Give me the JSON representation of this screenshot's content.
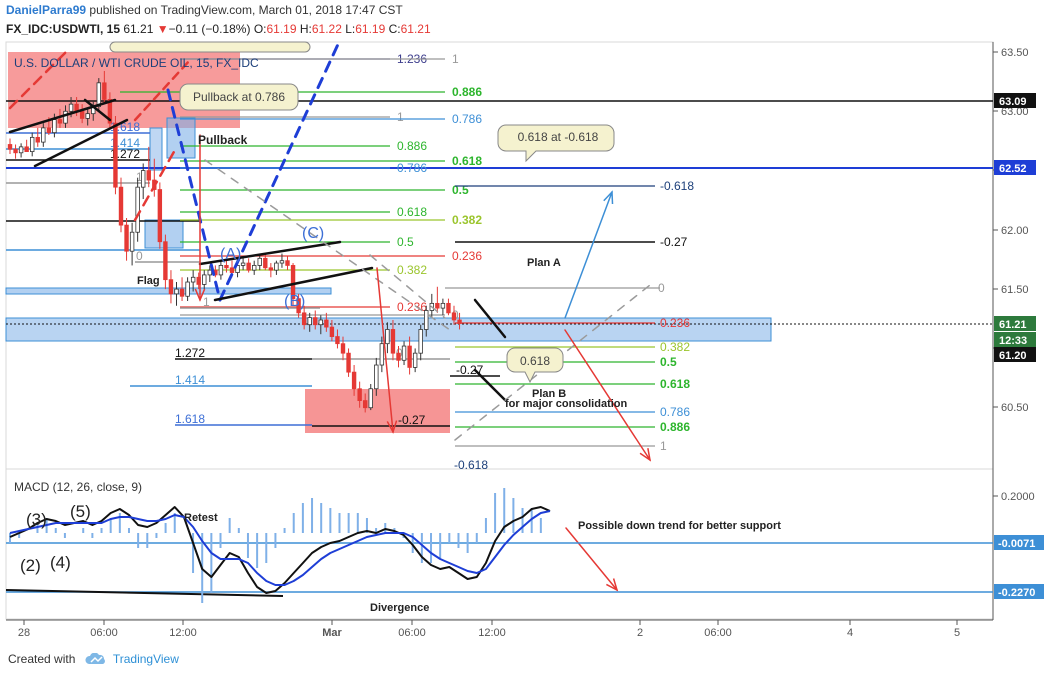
{
  "header": {
    "author": "DanielParra99",
    "published": "published on TradingView.com, March 01, 2018 17:47 CST",
    "symbol": "FX_IDC:USDWTI, 15",
    "last": "61.21",
    "change": "−0.11 (−0.18%)",
    "open_label": "O:",
    "open": "61.19",
    "high_label": "H:",
    "high": "61.22",
    "low_label": "L:",
    "low": "61.19",
    "close_label": "C:",
    "close": "61.21"
  },
  "footer": {
    "created_with": "Created with",
    "brand": "TradingView"
  },
  "colors": {
    "bull": "#333333",
    "bear": "#e53935",
    "fib_green": "#2db52d",
    "fib_blue": "#3d8fd6",
    "fib_red": "#e53935",
    "fib_lime": "#9bc52d",
    "zone_red": "#f47a7a",
    "zone_blue": "#7fb0e8"
  },
  "chart_data": [
    {
      "type": "candlestick",
      "title": "U.S. DOLLAR / WTI CRUDE OIL, 15, FX_IDC",
      "y_axis": {
        "range": [
          60.1,
          63.55
        ],
        "ticks": [
          "63.50",
          "63.00",
          "62.50",
          "62.00",
          "61.50",
          "61.00",
          "60.50"
        ]
      },
      "x_axis": {
        "ticks": [
          "28",
          "06:00",
          "12:00",
          "Mar",
          "06:00",
          "12:00",
          "2",
          "06:00",
          "4",
          "5"
        ]
      },
      "price_labels": [
        {
          "value": "63.09",
          "level": 63.09
        },
        {
          "value": "62.52",
          "level": 62.52
        },
        {
          "value": "61.21",
          "level": 61.21
        },
        {
          "value": "12:33",
          "level": 61.09
        },
        {
          "value": "61.20",
          "level": 60.98
        }
      ],
      "candles": [
        [
          62.72,
          62.77,
          62.64,
          62.68
        ],
        [
          62.68,
          62.72,
          62.6,
          62.65
        ],
        [
          62.65,
          62.73,
          62.61,
          62.7
        ],
        [
          62.7,
          62.76,
          62.66,
          62.66
        ],
        [
          62.66,
          62.82,
          62.62,
          62.78
        ],
        [
          62.78,
          62.86,
          62.7,
          62.74
        ],
        [
          62.74,
          62.9,
          62.7,
          62.86
        ],
        [
          62.86,
          62.95,
          62.8,
          62.82
        ],
        [
          62.82,
          62.98,
          62.78,
          62.93
        ],
        [
          62.93,
          63.02,
          62.86,
          62.9
        ],
        [
          62.9,
          63.05,
          62.86,
          63.0
        ],
        [
          63.0,
          63.12,
          62.95,
          63.06
        ],
        [
          63.06,
          63.12,
          62.96,
          63.0
        ],
        [
          63.0,
          63.06,
          62.9,
          62.94
        ],
        [
          62.94,
          63.02,
          62.88,
          62.98
        ],
        [
          62.98,
          63.08,
          62.92,
          63.04
        ],
        [
          63.04,
          63.28,
          63.0,
          63.24
        ],
        [
          63.24,
          63.34,
          63.06,
          63.1
        ],
        [
          63.1,
          63.16,
          62.86,
          62.9
        ],
        [
          62.9,
          62.96,
          62.3,
          62.36
        ],
        [
          62.36,
          62.44,
          61.98,
          62.04
        ],
        [
          62.04,
          62.1,
          61.74,
          61.82
        ],
        [
          61.82,
          62.06,
          61.7,
          61.98
        ],
        [
          61.98,
          62.44,
          61.9,
          62.36
        ],
        [
          62.36,
          62.56,
          62.26,
          62.5
        ],
        [
          62.5,
          62.7,
          62.36,
          62.42
        ],
        [
          62.42,
          62.6,
          62.28,
          62.34
        ],
        [
          62.34,
          62.4,
          61.84,
          61.9
        ],
        [
          61.9,
          61.96,
          61.5,
          61.58
        ],
        [
          61.58,
          61.66,
          61.38,
          61.46
        ],
        [
          61.46,
          61.56,
          61.36,
          61.5
        ],
        [
          61.5,
          61.6,
          61.4,
          61.44
        ],
        [
          61.44,
          61.6,
          61.4,
          61.56
        ],
        [
          61.56,
          61.66,
          61.48,
          61.6
        ],
        [
          61.6,
          61.64,
          61.5,
          61.54
        ],
        [
          61.54,
          61.66,
          61.5,
          61.62
        ],
        [
          61.62,
          61.7,
          61.56,
          61.66
        ],
        [
          61.66,
          61.7,
          61.6,
          61.62
        ],
        [
          61.62,
          61.74,
          61.58,
          61.7
        ],
        [
          61.7,
          61.76,
          61.64,
          61.68
        ],
        [
          61.68,
          61.74,
          61.6,
          61.64
        ],
        [
          61.64,
          61.72,
          61.6,
          61.7
        ],
        [
          61.7,
          61.78,
          61.66,
          61.72
        ],
        [
          61.72,
          61.76,
          61.64,
          61.66
        ],
        [
          61.66,
          61.74,
          61.62,
          61.7
        ],
        [
          61.7,
          61.8,
          61.66,
          61.76
        ],
        [
          61.76,
          61.8,
          61.66,
          61.68
        ],
        [
          61.68,
          61.72,
          61.6,
          61.66
        ],
        [
          61.66,
          61.74,
          61.62,
          61.72
        ],
        [
          61.72,
          61.8,
          61.68,
          61.74
        ],
        [
          61.74,
          61.78,
          61.66,
          61.7
        ],
        [
          61.7,
          61.72,
          61.36,
          61.42
        ],
        [
          61.42,
          61.46,
          61.26,
          61.3
        ],
        [
          61.3,
          61.36,
          61.16,
          61.2
        ],
        [
          61.2,
          61.3,
          61.14,
          61.26
        ],
        [
          61.26,
          61.32,
          61.16,
          61.2
        ],
        [
          61.2,
          61.28,
          61.12,
          61.24
        ],
        [
          61.24,
          61.3,
          61.14,
          61.18
        ],
        [
          61.18,
          61.24,
          61.06,
          61.1
        ],
        [
          61.1,
          61.16,
          61.0,
          61.04
        ],
        [
          61.04,
          61.1,
          60.9,
          60.96
        ],
        [
          60.96,
          61.0,
          60.76,
          60.8
        ],
        [
          60.8,
          60.86,
          60.6,
          60.66
        ],
        [
          60.66,
          60.72,
          60.5,
          60.56
        ],
        [
          60.56,
          60.62,
          60.46,
          60.5
        ],
        [
          60.5,
          60.7,
          60.48,
          60.66
        ],
        [
          60.66,
          60.92,
          60.6,
          60.86
        ],
        [
          60.86,
          61.1,
          60.8,
          61.04
        ],
        [
          61.04,
          61.22,
          60.96,
          61.16
        ],
        [
          61.16,
          61.24,
          60.9,
          60.96
        ],
        [
          60.96,
          61.02,
          60.84,
          60.9
        ],
        [
          60.9,
          61.06,
          60.86,
          61.02
        ],
        [
          61.02,
          61.1,
          60.78,
          60.84
        ],
        [
          60.84,
          61.0,
          60.8,
          60.96
        ],
        [
          60.96,
          61.2,
          60.9,
          61.16
        ],
        [
          61.16,
          61.36,
          61.1,
          61.32
        ],
        [
          61.32,
          61.46,
          61.26,
          61.38
        ],
        [
          61.38,
          61.52,
          61.3,
          61.34
        ],
        [
          61.34,
          61.42,
          61.28,
          61.38
        ],
        [
          61.38,
          61.42,
          61.28,
          61.3
        ],
        [
          61.3,
          61.36,
          61.2,
          61.24
        ],
        [
          61.24,
          61.3,
          61.16,
          61.21
        ]
      ],
      "fib_levels_top": [
        {
          "label": "1.236",
          "level": 63.45
        },
        {
          "label": "1",
          "level": 63.45
        },
        {
          "label": "0.886",
          "level": 63.13
        },
        {
          "label": "1",
          "level": 62.93
        },
        {
          "label": "0.786",
          "level": 62.93
        },
        {
          "label": "0.886",
          "level": 62.7
        },
        {
          "label": "0.618",
          "level": 62.6
        },
        {
          "label": "0.786",
          "level": 62.57
        },
        {
          "label": "0.5",
          "level": 62.36
        },
        {
          "label": "0.618",
          "level": 62.17
        },
        {
          "label": "0.382",
          "level": 62.09
        },
        {
          "label": "0.5",
          "level": 61.92
        },
        {
          "label": "0.236",
          "level": 61.77
        },
        {
          "label": "0.382",
          "level": 61.66
        },
        {
          "label": "0.236",
          "level": 61.33
        },
        {
          "label": "0",
          "level": 61.29
        },
        {
          "label": "0",
          "level": 61.67
        }
      ],
      "fib_levels_plan": [
        {
          "label": "-0.618",
          "level": 62.36
        },
        {
          "label": "-0.27",
          "level": 61.92
        },
        {
          "label": "0.236",
          "level": 61.23
        },
        {
          "label": "0.382",
          "level": 61.08
        },
        {
          "label": "0.5",
          "level": 60.93
        },
        {
          "label": "0.618",
          "level": 60.77
        },
        {
          "label": "0.786",
          "level": 60.56
        },
        {
          "label": "0.886",
          "level": 60.43
        },
        {
          "label": "1",
          "level": 60.28
        },
        {
          "label": "-0.618",
          "level": 60.1
        }
      ],
      "fib_levels_left": [
        {
          "label": "1.618",
          "level": 62.8
        },
        {
          "label": "1.414",
          "level": 62.65
        },
        {
          "label": "1.272",
          "level": 62.55
        },
        {
          "label": "1",
          "level": 62.36
        },
        {
          "label": "0",
          "level": 61.72
        },
        {
          "label": "1",
          "level": 61.28
        },
        {
          "label": "1.272",
          "level": 60.98
        },
        {
          "label": "1.414",
          "level": 60.75
        },
        {
          "label": "1.618",
          "level": 60.37
        },
        {
          "label": "0",
          "level": 60.98
        },
        {
          "label": "-0.27",
          "level": 60.37
        },
        {
          "label": "-0.27",
          "level": 60.8
        }
      ],
      "annotations": {
        "callout_pullback": "Pullback at 0.786",
        "callout_618": "0.618 at -0.618",
        "callout_small": "0.618",
        "pullback": "Pullback",
        "flag": "Flag",
        "wave_a": "(A)",
        "wave_b": "(B)",
        "wave_c": "(C)",
        "plan_a": "Plan A",
        "plan_b": "Plan B",
        "plan_b_note": "for major consolidation"
      }
    },
    {
      "type": "line",
      "title": "MACD (12, 26, close, 9)",
      "y_axis": {
        "range": [
          -0.42,
          0.3
        ],
        "ticks": [
          "0.2000"
        ]
      },
      "price_labels": [
        {
          "value": "-0.0071",
          "level": -0.0071
        },
        {
          "value": "-0.2270",
          "level": -0.227
        }
      ],
      "series": [
        {
          "name": "",
          "color": "#111111",
          "values": [
            -0.02,
            0.0,
            0.02,
            0.05,
            0.07,
            0.06,
            0.04,
            0.05,
            0.06,
            0.04,
            0.06,
            0.1,
            0.12,
            0.09,
            0.04,
            0.03,
            0.05,
            0.09,
            0.13,
            0.08,
            -0.05,
            -0.18,
            -0.22,
            -0.16,
            -0.1,
            -0.12,
            -0.2,
            -0.27,
            -0.3,
            -0.29,
            -0.25,
            -0.2,
            -0.15,
            -0.1,
            -0.07,
            -0.05,
            -0.04,
            -0.02,
            0.0,
            0.01,
            0.0,
            0.02,
            0.01,
            -0.01,
            -0.06,
            -0.12,
            -0.16,
            -0.18,
            -0.17,
            -0.2,
            -0.23,
            -0.22,
            -0.15,
            -0.04,
            0.03,
            0.06,
            0.08,
            0.12,
            0.13,
            0.11
          ]
        },
        {
          "name": "",
          "color": "#1e3ed6",
          "values": [
            0.0,
            0.01,
            0.02,
            0.03,
            0.04,
            0.05,
            0.05,
            0.05,
            0.05,
            0.05,
            0.05,
            0.07,
            0.08,
            0.08,
            0.07,
            0.06,
            0.06,
            0.07,
            0.09,
            0.08,
            0.03,
            -0.04,
            -0.1,
            -0.13,
            -0.13,
            -0.13,
            -0.15,
            -0.2,
            -0.24,
            -0.26,
            -0.26,
            -0.24,
            -0.21,
            -0.17,
            -0.13,
            -0.1,
            -0.08,
            -0.06,
            -0.04,
            -0.02,
            -0.01,
            0.0,
            0.0,
            0.0,
            -0.02,
            -0.06,
            -0.1,
            -0.13,
            -0.15,
            -0.17,
            -0.19,
            -0.2,
            -0.18,
            -0.12,
            -0.06,
            -0.01,
            0.03,
            0.07,
            0.1,
            0.11
          ]
        }
      ],
      "annotations": {
        "wave_3": "(3)",
        "wave_5": "(5)",
        "wave_2": "(2)",
        "wave_4": "(4)",
        "retest": "Retest",
        "divergence": "Divergence",
        "down_trend": "Possible down trend for better support"
      }
    }
  ]
}
